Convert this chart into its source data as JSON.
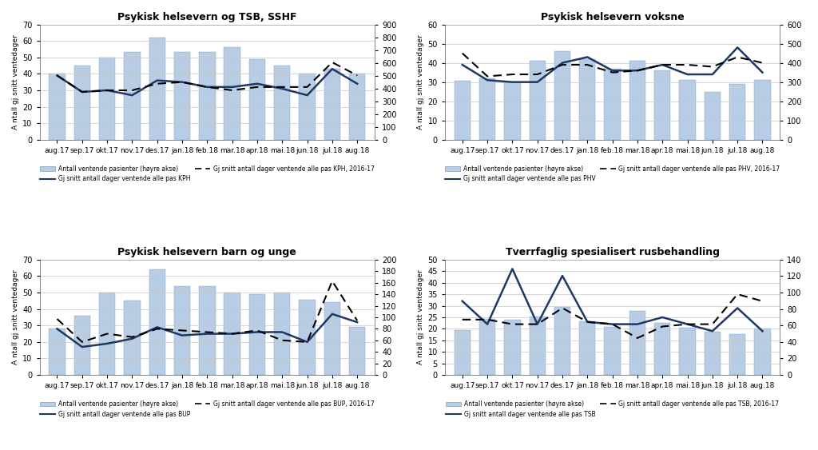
{
  "months": [
    "aug.17",
    "sep.17",
    "okt.17",
    "nov.17",
    "des.17",
    "jan.18",
    "feb.18",
    "mar.18",
    "apr.18",
    "mai.18",
    "jun.18",
    "jul.18",
    "aug.18"
  ],
  "panels": [
    {
      "title": "Psykisk helsevern og TSB, SSHF",
      "bars": [
        514,
        578,
        643,
        682,
        800,
        682,
        682,
        721,
        629,
        578,
        514,
        553,
        514
      ],
      "line_solid": [
        39,
        29,
        30,
        27,
        36,
        35,
        32,
        32,
        34,
        31,
        27,
        43,
        34
      ],
      "line_dashed": [
        39,
        29,
        30,
        30,
        34,
        35,
        32,
        30,
        32,
        32,
        32,
        47,
        39
      ],
      "left_ylim": [
        0,
        70
      ],
      "right_ylim": [
        0,
        900
      ],
      "right_yticks": [
        0,
        100,
        200,
        300,
        400,
        500,
        600,
        700,
        800,
        900
      ],
      "left_yticks": [
        0,
        10,
        20,
        30,
        40,
        50,
        60,
        70
      ],
      "legend_line": "Gj snitt antall dager ventende alle pas KPH",
      "legend_dashed": "Gj snitt antall dager ventende alle pas KPH, 2016-17",
      "legend_bar": "Antall ventende pasienter (høyre akse)"
    },
    {
      "title": "Psykisk helsevern voksne",
      "bars": [
        308,
        320,
        300,
        410,
        460,
        420,
        370,
        410,
        360,
        310,
        250,
        290,
        310
      ],
      "line_solid": [
        39,
        31,
        30,
        30,
        40,
        43,
        36,
        36,
        39,
        34,
        34,
        48,
        35
      ],
      "line_dashed": [
        45,
        33,
        34,
        34,
        39,
        39,
        35,
        36,
        39,
        39,
        38,
        43,
        40
      ],
      "left_ylim": [
        0,
        60
      ],
      "right_ylim": [
        0,
        600
      ],
      "right_yticks": [
        0,
        100,
        200,
        300,
        400,
        500,
        600
      ],
      "left_yticks": [
        0,
        10,
        20,
        30,
        40,
        50,
        60
      ],
      "legend_line": "Gj snitt antall dager ventende alle pas PHV",
      "legend_dashed": "Gj snitt antall dager ventende alle pas PHV, 2016-17",
      "legend_bar": "Antall ventende pasienter (høyre akse)"
    },
    {
      "title": "Psykisk helsevern barn og unge",
      "bars": [
        80,
        103,
        143,
        129,
        183,
        154,
        154,
        143,
        140,
        143,
        131,
        126,
        83
      ],
      "line_solid": [
        28,
        17,
        19,
        22,
        29,
        24,
        25,
        25,
        26,
        26,
        20,
        37,
        32
      ],
      "line_dashed": [
        34,
        20,
        25,
        23,
        28,
        27,
        26,
        25,
        27,
        21,
        20,
        57,
        33
      ],
      "left_ylim": [
        0,
        70
      ],
      "right_ylim": [
        0,
        200
      ],
      "right_yticks": [
        0,
        20,
        40,
        60,
        80,
        100,
        120,
        140,
        160,
        180,
        200
      ],
      "left_yticks": [
        0,
        10,
        20,
        30,
        40,
        50,
        60,
        70
      ],
      "legend_line": "Gj snitt antall dager ventende alle pas BUP",
      "legend_dashed": "Gj snitt antall dager ventende alle pas BUP, 2016-17",
      "legend_bar": "Antall ventende pasienter (høyre akse)"
    },
    {
      "title": "Tverrfaglig spesialisert rusbehandling",
      "bars": [
        54,
        68,
        67,
        71,
        83,
        65,
        58,
        78,
        63,
        57,
        52,
        50,
        56
      ],
      "line_solid": [
        32,
        22,
        46,
        22,
        43,
        23,
        22,
        22,
        25,
        22,
        19,
        29,
        19
      ],
      "line_dashed": [
        24,
        24,
        22,
        22,
        29,
        23,
        22,
        16,
        21,
        22,
        22,
        35,
        32
      ],
      "left_ylim": [
        0,
        50
      ],
      "right_ylim": [
        0,
        140
      ],
      "right_yticks": [
        0,
        20,
        40,
        60,
        80,
        100,
        120,
        140
      ],
      "left_yticks": [
        0,
        5,
        10,
        15,
        20,
        25,
        30,
        35,
        40,
        45,
        50
      ],
      "legend_line": "Gj snitt antall dager ventende alle pas TSB",
      "legend_dashed": "Gj snitt antall dager ventende alle pas TSB, 2016-17",
      "legend_bar": "Antall ventende pasienter (høyre akse)"
    }
  ],
  "bar_color": "#b8cce4",
  "bar_edgecolor": "#7f9fbf",
  "line_color": "#1f3864",
  "dashed_color": "#000000",
  "ylabel": "A ntall gj snitt ventedager",
  "background_color": "#ffffff",
  "grid_color": "#c8c8c8"
}
